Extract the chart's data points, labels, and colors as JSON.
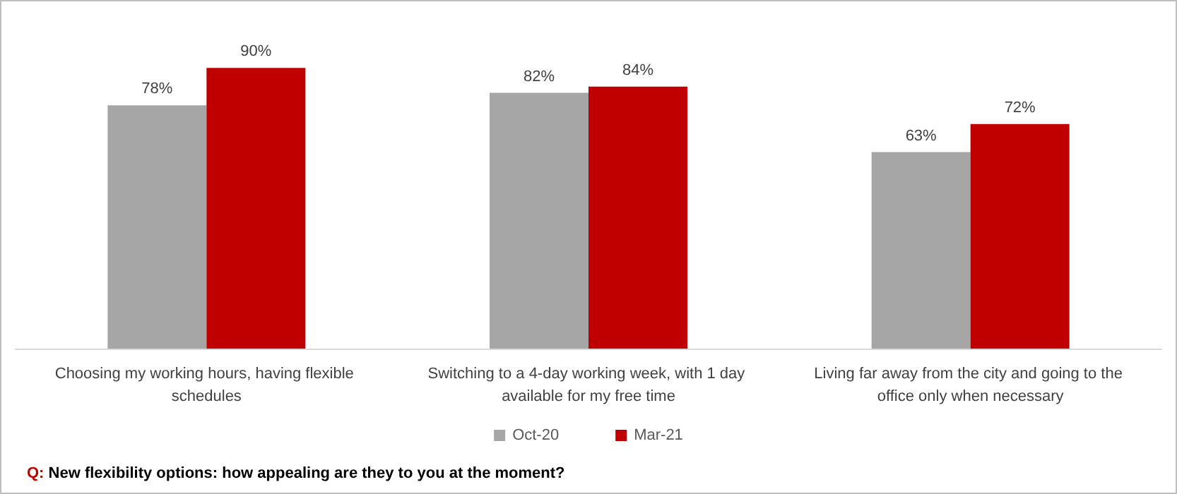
{
  "chart_data": {
    "type": "bar",
    "categories": [
      "Choosing my working hours, having flexible schedules",
      "Switching to a 4-day working week, with 1 day available for my free time",
      "Living far away from the city and going to the office only when necessary"
    ],
    "series": [
      {
        "name": "Oct-20",
        "color": "#a6a6a6",
        "values": [
          78,
          82,
          63
        ],
        "value_labels": [
          "78%",
          "82%",
          "63%"
        ]
      },
      {
        "name": "Mar-21",
        "color": "#c00000",
        "values": [
          90,
          84,
          72
        ],
        "value_labels": [
          "90%",
          "84%",
          "72%"
        ]
      }
    ],
    "legend": "bottom",
    "annotations": [
      "Q: New flexibility options: how appealing are they to you at the moment?"
    ]
  }
}
